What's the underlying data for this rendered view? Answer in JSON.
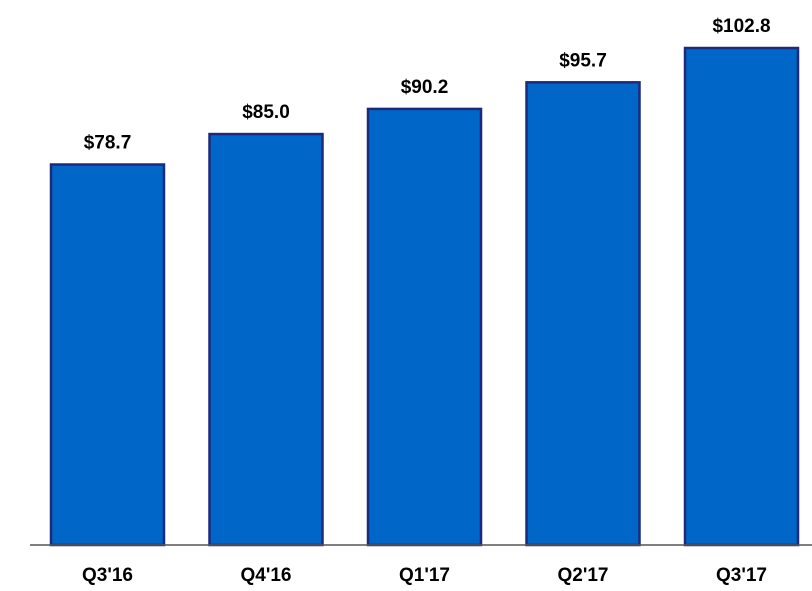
{
  "chart_data": {
    "type": "bar",
    "categories": [
      "Q3'16",
      "Q4'16",
      "Q1'17",
      "Q2'17",
      "Q3'17"
    ],
    "values": [
      78.7,
      85.0,
      90.2,
      95.7,
      102.8
    ],
    "value_labels": [
      "$78.7",
      "$85.0",
      "$90.2",
      "$95.7",
      "$102.8"
    ],
    "color": "#0066c8"
  }
}
